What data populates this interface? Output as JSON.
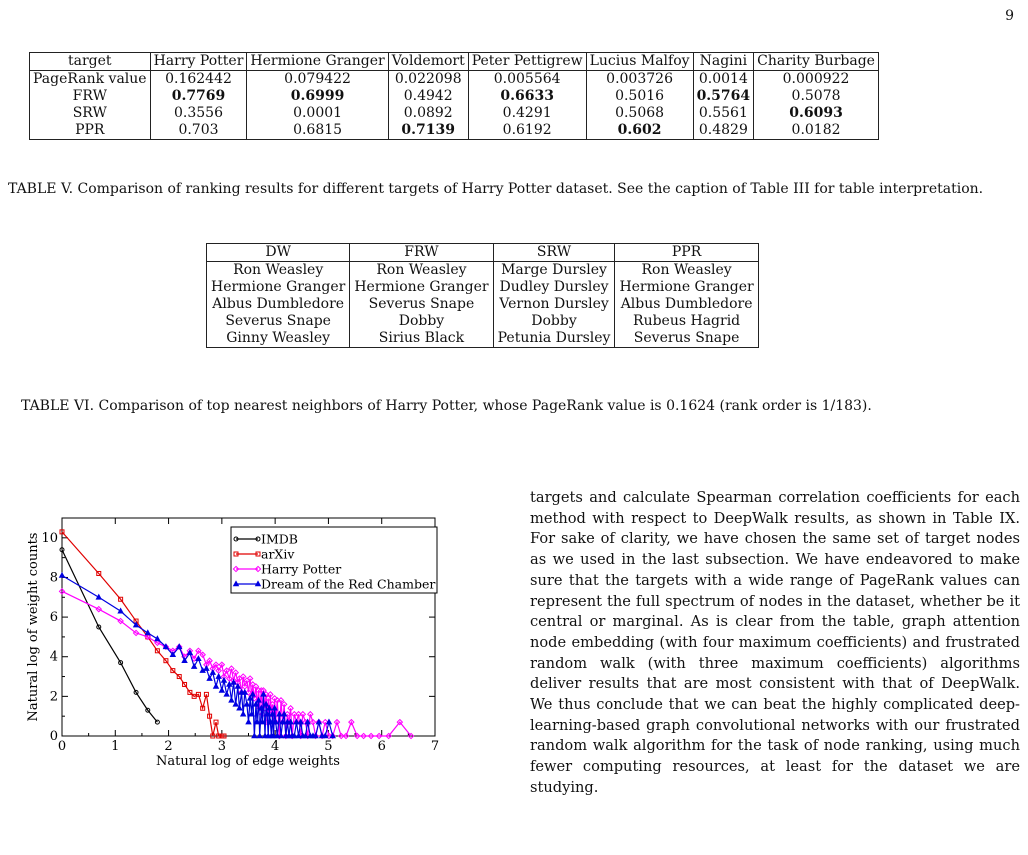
{
  "page_number": "9",
  "table5": {
    "headers": [
      "target",
      "Harry Potter",
      "Hermione Granger",
      "Voldemort",
      "Peter Pettigrew",
      "Lucius Malfoy",
      "Nagini",
      "Charity Burbage"
    ],
    "rows": [
      {
        "cells": [
          "PageRank value",
          "0.162442",
          "0.079422",
          "0.022098",
          "0.005564",
          "0.003726",
          "0.0014",
          "0.000922"
        ],
        "bold": []
      },
      {
        "cells": [
          "FRW",
          "0.7769",
          "0.6999",
          "0.4942",
          "0.6633",
          "0.5016",
          "0.5764",
          "0.5078"
        ],
        "bold": [
          1,
          2,
          4,
          6
        ]
      },
      {
        "cells": [
          "SRW",
          "0.3556",
          "0.0001",
          "0.0892",
          "0.4291",
          "0.5068",
          "0.5561",
          "0.6093"
        ],
        "bold": [
          7
        ]
      },
      {
        "cells": [
          "PPR",
          "0.703",
          "0.6815",
          "0.7139",
          "0.6192",
          "0.602",
          "0.4829",
          "0.0182"
        ],
        "bold": [
          3,
          5
        ]
      }
    ],
    "caption": "TABLE V. Comparison of ranking results for different targets of Harry Potter dataset. See the caption of Table III for table interpretation."
  },
  "table6": {
    "headers": [
      "DW",
      "FRW",
      "SRW",
      "PPR"
    ],
    "rows": [
      [
        "Ron Weasley",
        "Ron Weasley",
        "Marge Dursley",
        "Ron Weasley"
      ],
      [
        "Hermione Granger",
        "Hermione Granger",
        "Dudley Dursley",
        "Hermione Granger"
      ],
      [
        "Albus Dumbledore",
        "Severus Snape",
        "Vernon Dursley",
        "Albus Dumbledore"
      ],
      [
        "Severus Snape",
        "Dobby",
        "Dobby",
        "Rubeus Hagrid"
      ],
      [
        "Ginny Weasley",
        "Sirius Black",
        "Petunia Dursley",
        "Severus Snape"
      ]
    ],
    "caption": "TABLE VI. Comparison of top nearest neighbors of Harry Potter, whose PageRank value is 0.1624 (rank order is 1/183)."
  },
  "body_text": "targets and calculate Spearman correlation coefficients for each method with respect to DeepWalk results, as shown in Table IX. For sake of clarity, we have chosen the same set of target nodes as we used in the last subsection. We have endeavored to make sure that the targets with a wide range of PageRank values can represent the full spectrum of nodes in the dataset, whether be it central or marginal. As is clear from the table, graph attention node embedding (with four maximum coefficients) and frustrated random walk (with three maximum coefficients) algorithms deliver results that are most consistent with that of DeepWalk. We thus conclude that we can beat the highly complicated deep-learning-based graph convolutional networks with our frustrated random walk algorithm for the task of node ranking, using much fewer computing resources, at least for the dataset we are studying.",
  "chart_data": {
    "type": "line",
    "xlabel": "Natural log of edge weights",
    "ylabel": "Natural log of weight counts",
    "xlim": [
      0,
      7
    ],
    "ylim": [
      0,
      11
    ],
    "xticks": [
      "0",
      "1",
      "2",
      "3",
      "4",
      "5",
      "6",
      "7"
    ],
    "yticks": [
      "0",
      "2",
      "4",
      "6",
      "8",
      "10"
    ],
    "legend_position": "top-right",
    "series": [
      {
        "name": "IMDB",
        "color": "#000000",
        "marker": "circle",
        "x": [
          0,
          0.69,
          1.1,
          1.39,
          1.61,
          1.79
        ],
        "y": [
          9.4,
          5.5,
          3.7,
          2.2,
          1.3,
          0.7
        ]
      },
      {
        "name": "arXiv",
        "color": "#e00000",
        "marker": "square",
        "x": [
          0,
          0.69,
          1.1,
          1.39,
          1.61,
          1.79,
          1.95,
          2.08,
          2.2,
          2.3,
          2.4,
          2.48,
          2.56,
          2.64,
          2.71,
          2.77,
          2.83,
          2.89,
          2.94,
          3.0,
          3.04
        ],
        "y": [
          10.3,
          8.2,
          6.9,
          5.8,
          5.0,
          4.3,
          3.8,
          3.3,
          3.0,
          2.6,
          2.2,
          2.0,
          2.1,
          1.4,
          2.1,
          1.0,
          0.0,
          0.7,
          0.0,
          0.0,
          0.0
        ]
      },
      {
        "name": "Harry Potter",
        "color": "#ff00ff",
        "marker": "diamond",
        "x": [
          0,
          0.69,
          1.1,
          1.39,
          1.61,
          1.79,
          1.95,
          2.08,
          2.2,
          2.3,
          2.4,
          2.48,
          2.56,
          2.64,
          2.71,
          2.77,
          2.83,
          2.89,
          2.94,
          3.0,
          3.04,
          3.09,
          3.14,
          3.18,
          3.22,
          3.26,
          3.3,
          3.33,
          3.37,
          3.4,
          3.43,
          3.47,
          3.5,
          3.53,
          3.56,
          3.58,
          3.61,
          3.64,
          3.66,
          3.69,
          3.71,
          3.74,
          3.76,
          3.78,
          3.81,
          3.83,
          3.85,
          3.87,
          3.89,
          3.91,
          3.93,
          3.95,
          3.97,
          3.99,
          4.01,
          4.04,
          4.08,
          4.11,
          4.14,
          4.17,
          4.2,
          4.23,
          4.26,
          4.29,
          4.32,
          4.36,
          4.4,
          4.44,
          4.48,
          4.52,
          4.57,
          4.61,
          4.66,
          4.71,
          4.76,
          4.82,
          4.88,
          4.94,
          5.01,
          5.08,
          5.16,
          5.24,
          5.33,
          5.43,
          5.54,
          5.66,
          5.8,
          5.95,
          6.13,
          6.34,
          6.55
        ],
        "y": [
          7.3,
          6.4,
          5.8,
          5.2,
          5.0,
          4.7,
          4.5,
          4.3,
          4.5,
          4.0,
          4.3,
          3.9,
          4.3,
          4.1,
          3.6,
          3.8,
          3.4,
          3.6,
          3.3,
          3.6,
          3.0,
          3.3,
          2.9,
          3.4,
          2.8,
          3.2,
          2.7,
          2.9,
          2.2,
          3.0,
          2.5,
          2.8,
          2.2,
          2.9,
          2.0,
          2.6,
          1.9,
          2.5,
          1.6,
          2.3,
          1.4,
          2.3,
          1.1,
          2.3,
          1.4,
          2.1,
          0.7,
          1.9,
          0.7,
          2.1,
          1.1,
          1.6,
          0.7,
          1.9,
          0.7,
          1.8,
          0.0,
          1.8,
          0.7,
          1.6,
          0.0,
          1.1,
          0.7,
          1.4,
          0.0,
          1.1,
          0.7,
          1.1,
          0.0,
          1.1,
          0.7,
          0.0,
          1.1,
          0.7,
          0.0,
          0.7,
          0.0,
          0.7,
          0.0,
          0.0,
          0.7,
          0.0,
          0.0,
          0.7,
          0.0,
          0.0,
          0.0,
          0.0,
          0.0,
          0.7,
          0.0
        ]
      },
      {
        "name": "Dream of the Red Chamber",
        "color": "#0000e0",
        "marker": "triangle",
        "x": [
          0,
          0.69,
          1.1,
          1.39,
          1.61,
          1.79,
          1.95,
          2.08,
          2.2,
          2.3,
          2.4,
          2.48,
          2.56,
          2.64,
          2.71,
          2.77,
          2.83,
          2.89,
          2.94,
          3.0,
          3.04,
          3.09,
          3.14,
          3.18,
          3.22,
          3.26,
          3.3,
          3.33,
          3.37,
          3.4,
          3.43,
          3.47,
          3.5,
          3.53,
          3.56,
          3.58,
          3.61,
          3.64,
          3.66,
          3.69,
          3.71,
          3.74,
          3.76,
          3.78,
          3.81,
          3.83,
          3.85,
          3.87,
          3.89,
          3.91,
          3.93,
          3.95,
          3.97,
          3.99,
          4.01,
          4.04,
          4.08,
          4.11,
          4.14,
          4.17,
          4.2,
          4.23,
          4.26,
          4.29,
          4.32,
          4.36,
          4.4,
          4.44,
          4.48,
          4.52,
          4.57,
          4.61,
          4.66,
          4.71,
          4.76,
          4.82,
          4.88,
          4.94,
          5.01,
          5.08
        ],
        "y": [
          8.1,
          7.0,
          6.3,
          5.6,
          5.2,
          4.9,
          4.5,
          4.1,
          4.5,
          3.8,
          4.2,
          3.5,
          3.9,
          3.3,
          3.4,
          2.9,
          3.2,
          2.5,
          3.0,
          2.3,
          2.8,
          2.1,
          2.6,
          1.8,
          2.7,
          1.6,
          2.5,
          1.4,
          2.2,
          1.1,
          2.2,
          1.6,
          0.7,
          1.9,
          1.1,
          2.1,
          0.0,
          1.6,
          0.7,
          1.8,
          0.0,
          1.4,
          0.7,
          2.1,
          0.0,
          1.6,
          1.1,
          0.0,
          1.4,
          0.7,
          0.0,
          1.1,
          0.0,
          1.4,
          0.7,
          0.0,
          1.1,
          0.0,
          0.7,
          1.1,
          0.0,
          0.7,
          0.0,
          0.7,
          0.0,
          0.0,
          0.7,
          0.0,
          0.7,
          0.0,
          0.0,
          0.7,
          0.0,
          0.0,
          0.0,
          0.7,
          0.0,
          0.0,
          0.7,
          0.0
        ]
      }
    ]
  }
}
